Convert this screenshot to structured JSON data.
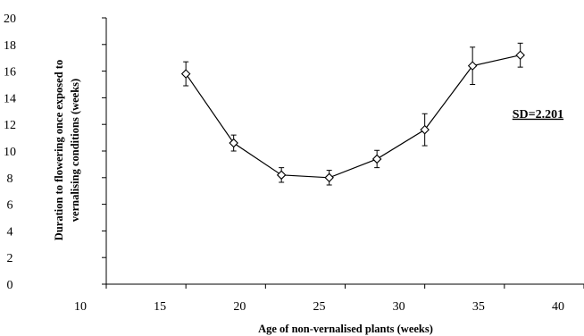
{
  "chart_data": {
    "type": "line",
    "title": "",
    "xlabel": "Age of non-vernalised plants (weeks)",
    "ylabel_lines": [
      "Duration to flowering once exposed to",
      "vernalising conditions (weeks)"
    ],
    "xlim": [
      10,
      40
    ],
    "ylim": [
      0,
      20
    ],
    "x_ticks": [
      10,
      15,
      20,
      25,
      30,
      35,
      40
    ],
    "y_ticks": [
      0,
      2,
      4,
      6,
      8,
      10,
      12,
      14,
      16,
      18,
      20
    ],
    "grid": false,
    "legend": "none",
    "series": [
      {
        "marker": "diamond-open",
        "color": "#000000",
        "x": [
          15,
          18,
          21,
          24,
          27,
          30,
          33,
          36
        ],
        "y": [
          15.8,
          10.6,
          8.2,
          8.0,
          9.4,
          11.6,
          16.4,
          17.2
        ],
        "error": [
          0.9,
          0.6,
          0.55,
          0.55,
          0.65,
          1.2,
          1.4,
          0.9
        ]
      }
    ],
    "annotations": [
      {
        "text": "SD=2.201",
        "x": 35.5,
        "y": 12.5
      }
    ]
  }
}
